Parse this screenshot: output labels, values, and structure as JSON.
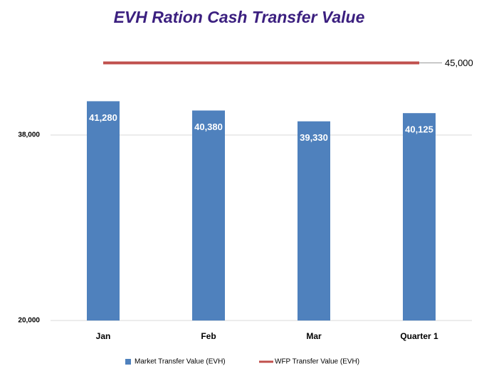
{
  "chart_data": {
    "type": "bar_line",
    "title": "EVH Ration Cash Transfer Value",
    "categories": [
      "Jan",
      "Feb",
      "Mar",
      "Quarter 1"
    ],
    "series": [
      {
        "name": "Market Transfer Value (EVH)",
        "type": "bar",
        "color": "#4f81bd",
        "values": [
          41280,
          40380,
          39330,
          40125
        ],
        "value_labels": [
          "41,280",
          "40,380",
          "39,330",
          "40,125"
        ]
      },
      {
        "name": "WFP Transfer Value (EVH)",
        "type": "line",
        "color": "#c0504d",
        "values": [
          45000,
          45000,
          45000,
          45000
        ],
        "value_labels": [
          null,
          null,
          null,
          "45,000"
        ]
      }
    ],
    "ylim": [
      20000,
      47000
    ],
    "yticks": [
      {
        "value": 20000,
        "label": "20,000"
      },
      {
        "value": 38000,
        "label": "38,000"
      }
    ],
    "grid": true,
    "legend": "bottom"
  }
}
